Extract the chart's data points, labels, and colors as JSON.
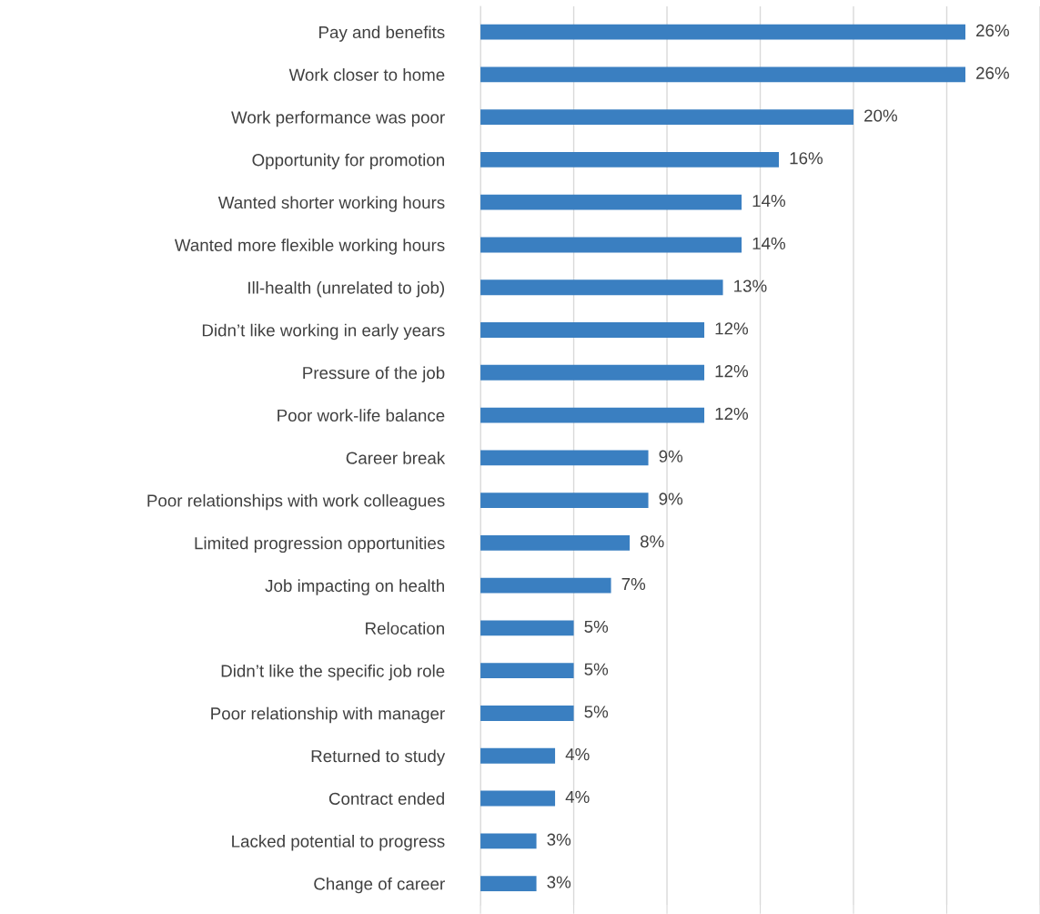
{
  "chart_data": {
    "type": "bar",
    "orientation": "horizontal",
    "categories": [
      "Pay and benefits",
      "Work closer to home",
      "Work performance was poor",
      "Opportunity for promotion",
      "Wanted shorter working hours",
      "Wanted more flexible working hours",
      "Ill-health (unrelated to job)",
      "Didn’t like working in early years",
      "Pressure of the job",
      "Poor work-life balance",
      "Career break",
      "Poor relationships with work colleagues",
      "Limited progression opportunities",
      "Job impacting on health",
      "Relocation",
      "Didn’t like the specific job role",
      "Poor relationship with manager",
      "Returned to study",
      "Contract ended",
      "Lacked potential to progress",
      "Change of career"
    ],
    "values": [
      26,
      26,
      20,
      16,
      14,
      14,
      13,
      12,
      12,
      12,
      9,
      9,
      8,
      7,
      5,
      5,
      5,
      4,
      4,
      3,
      3
    ],
    "value_labels": [
      "26%",
      "26%",
      "20%",
      "16%",
      "14%",
      "14%",
      "13%",
      "12%",
      "12%",
      "12%",
      "9%",
      "9%",
      "8%",
      "7%",
      "5%",
      "5%",
      "5%",
      "4%",
      "4%",
      "3%",
      "3%"
    ],
    "color": "#3a7fc1",
    "xlim": [
      0,
      30
    ],
    "xticks": [
      {
        "value": 0,
        "label": null
      },
      {
        "value": 5,
        "label": null
      },
      {
        "value": 10,
        "label": null
      },
      {
        "value": 15,
        "label": null
      },
      {
        "value": 20,
        "label": null
      },
      {
        "value": 25,
        "label": null
      },
      {
        "value": 30,
        "label": null
      }
    ],
    "grid": "x",
    "tick_labels": "y",
    "legend": false
  }
}
